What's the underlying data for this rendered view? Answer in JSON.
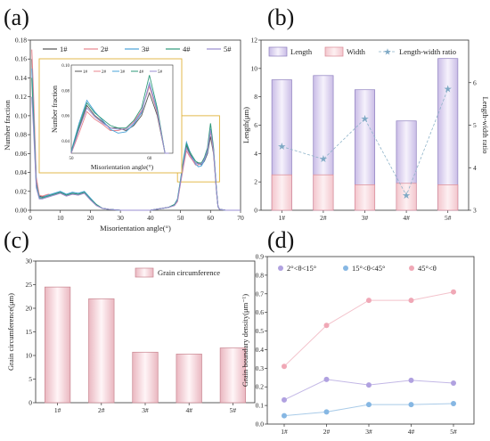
{
  "panel_labels": [
    "(a)",
    "(b)",
    "(c)",
    "(d)"
  ],
  "chart_data": [
    {
      "panel": "(a)",
      "type": "line",
      "xlabel": "Misorientation angle(°)",
      "ylabel": "Number fraction",
      "xlim": [
        0,
        70
      ],
      "ylim": [
        0,
        0.18
      ],
      "xticks": [
        0,
        10,
        20,
        30,
        40,
        50,
        60,
        70
      ],
      "yticks": [
        0.0,
        0.02,
        0.04,
        0.06,
        0.08,
        0.1,
        0.12,
        0.14,
        0.16,
        0.18
      ],
      "legend": [
        "1#",
        "2#",
        "3#",
        "4#",
        "5#"
      ],
      "colors": [
        "#555555",
        "#e8868f",
        "#4aa3d8",
        "#2e9a7a",
        "#9a8cd0"
      ],
      "x": [
        0.5,
        1,
        2,
        3,
        4,
        5,
        6,
        8,
        10,
        12,
        14,
        16,
        18,
        20,
        22,
        24,
        26,
        30,
        35,
        40,
        42,
        44,
        46,
        48,
        49,
        50,
        51,
        52,
        53,
        54,
        55,
        56,
        57,
        58,
        59,
        60,
        61,
        62,
        62.5,
        63,
        65,
        68,
        70
      ],
      "series": [
        {
          "name": "1#",
          "values": [
            0.16,
            0.12,
            0.03,
            0.015,
            0.014,
            0.015,
            0.016,
            0.017,
            0.019,
            0.016,
            0.018,
            0.017,
            0.019,
            0.012,
            0.006,
            0.002,
            0.001,
            0.0,
            0.0,
            0.0,
            0.001,
            0.002,
            0.003,
            0.006,
            0.01,
            0.03,
            0.05,
            0.068,
            0.06,
            0.055,
            0.05,
            0.05,
            0.048,
            0.052,
            0.06,
            0.078,
            0.06,
            0.02,
            0.004,
            0.001,
            0.0,
            0.0,
            0.0
          ]
        },
        {
          "name": "2#",
          "values": [
            0.17,
            0.13,
            0.035,
            0.016,
            0.015,
            0.016,
            0.017,
            0.016,
            0.018,
            0.015,
            0.017,
            0.016,
            0.018,
            0.011,
            0.005,
            0.002,
            0.001,
            0.0,
            0.0,
            0.0,
            0.001,
            0.002,
            0.003,
            0.005,
            0.009,
            0.028,
            0.046,
            0.063,
            0.057,
            0.053,
            0.048,
            0.048,
            0.05,
            0.055,
            0.064,
            0.083,
            0.062,
            0.02,
            0.004,
            0.001,
            0.0,
            0.0,
            0.0
          ]
        },
        {
          "name": "3#",
          "values": [
            0.15,
            0.11,
            0.028,
            0.014,
            0.013,
            0.015,
            0.016,
            0.018,
            0.02,
            0.017,
            0.019,
            0.018,
            0.02,
            0.013,
            0.006,
            0.002,
            0.001,
            0.0,
            0.0,
            0.0,
            0.001,
            0.002,
            0.003,
            0.006,
            0.012,
            0.032,
            0.054,
            0.072,
            0.063,
            0.056,
            0.049,
            0.046,
            0.047,
            0.053,
            0.062,
            0.086,
            0.064,
            0.021,
            0.004,
            0.001,
            0.0,
            0.0,
            0.0
          ]
        },
        {
          "name": "4#",
          "values": [
            0.14,
            0.1,
            0.026,
            0.013,
            0.013,
            0.014,
            0.015,
            0.017,
            0.019,
            0.016,
            0.018,
            0.017,
            0.019,
            0.012,
            0.006,
            0.002,
            0.001,
            0.0,
            0.0,
            0.0,
            0.001,
            0.002,
            0.003,
            0.006,
            0.011,
            0.031,
            0.052,
            0.07,
            0.062,
            0.057,
            0.052,
            0.05,
            0.05,
            0.056,
            0.066,
            0.092,
            0.066,
            0.022,
            0.004,
            0.001,
            0.0,
            0.0,
            0.0
          ]
        },
        {
          "name": "5#",
          "values": [
            0.12,
            0.09,
            0.024,
            0.012,
            0.012,
            0.013,
            0.014,
            0.016,
            0.018,
            0.015,
            0.017,
            0.016,
            0.018,
            0.011,
            0.005,
            0.002,
            0.001,
            0.0,
            0.0,
            0.0,
            0.001,
            0.002,
            0.003,
            0.005,
            0.01,
            0.029,
            0.049,
            0.066,
            0.059,
            0.054,
            0.05,
            0.049,
            0.049,
            0.054,
            0.063,
            0.085,
            0.063,
            0.021,
            0.004,
            0.001,
            0.0,
            0.0,
            0.0
          ]
        }
      ],
      "inset": {
        "xlabel": "Misorientation angle(°)",
        "ylabel": "Number fraction",
        "xlim": [
          50,
          63
        ],
        "ylim": [
          0.03,
          0.1
        ],
        "xticks": [
          50,
          60
        ],
        "yticks": [
          0.04,
          0.06,
          0.08,
          0.1
        ],
        "legend": [
          "1#",
          "2#",
          "3#",
          "4#",
          "5#"
        ]
      }
    },
    {
      "panel": "(b)",
      "type": "bar",
      "categories": [
        "1#",
        "2#",
        "3#",
        "4#",
        "5#"
      ],
      "series": [
        {
          "name": "Length",
          "values": [
            9.2,
            9.5,
            8.5,
            6.3,
            10.7
          ]
        },
        {
          "name": "Width",
          "values": [
            2.5,
            2.5,
            1.8,
            1.9,
            1.8
          ]
        },
        {
          "name": "Length-width ratio",
          "values": [
            4.5,
            4.2,
            5.15,
            3.35,
            5.85
          ]
        }
      ],
      "ylabel": "Length(μm)",
      "y2label": "Length-width ratio",
      "ylim": [
        0,
        12
      ],
      "yticks": [
        0,
        2,
        4,
        6,
        8,
        10,
        12
      ],
      "y2lim": [
        3,
        7
      ],
      "y2ticks": [
        3,
        4,
        5,
        6
      ],
      "legend_position": "top"
    },
    {
      "panel": "(c)",
      "type": "bar",
      "categories": [
        "1#",
        "2#",
        "3#",
        "4#",
        "5#"
      ],
      "series": [
        {
          "name": "Grain circumference",
          "values": [
            24.5,
            22.0,
            10.7,
            10.3,
            11.6
          ]
        }
      ],
      "ylabel": "Grain circumference(μm)",
      "ylim": [
        0,
        30
      ],
      "yticks": [
        0,
        5,
        10,
        15,
        20,
        25,
        30
      ],
      "legend_position": "top-right"
    },
    {
      "panel": "(d)",
      "type": "line",
      "categories": [
        "1#",
        "2#",
        "3#",
        "4#",
        "5#"
      ],
      "series": [
        {
          "name": "2°<θ<15°",
          "values": [
            0.13,
            0.24,
            0.21,
            0.235,
            0.22
          ]
        },
        {
          "name": "15°<θ<45°",
          "values": [
            0.045,
            0.065,
            0.105,
            0.105,
            0.11
          ]
        },
        {
          "name": "45°<θ",
          "values": [
            0.31,
            0.53,
            0.665,
            0.665,
            0.71
          ]
        }
      ],
      "ylabel": "Grain boundary density(μm⁻¹)",
      "ylim": [
        0,
        0.9
      ],
      "yticks": [
        0.0,
        0.1,
        0.2,
        0.3,
        0.4,
        0.5,
        0.6,
        0.7,
        0.8,
        0.9
      ],
      "legend_position": "top"
    }
  ]
}
